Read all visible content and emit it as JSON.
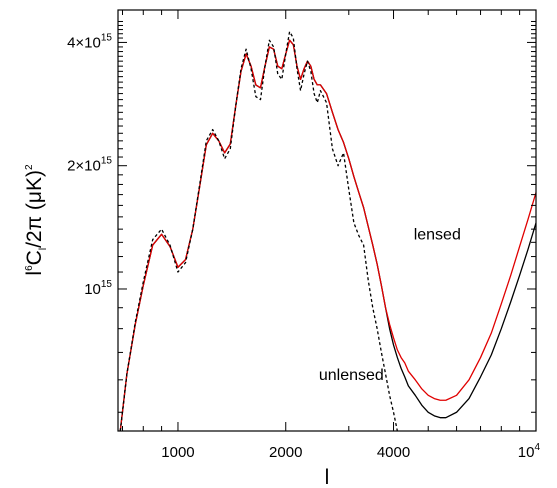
{
  "chart_data": {
    "type": "line",
    "xscale": "log",
    "yscale": "log",
    "xlabel": "l",
    "ylabel": {
      "base": "l",
      "exp": "6",
      "mid": "C",
      "sub": "l",
      "tail": "/2π (μK)",
      "exp2": "2"
    },
    "xlim": [
      680,
      10000
    ],
    "ylim": [
      450000000000000,
      4800000000000000
    ],
    "x_ticks": [
      {
        "value": 1000,
        "label": "1000"
      },
      {
        "value": 2000,
        "label": "2000"
      },
      {
        "value": 4000,
        "label": "4000"
      },
      {
        "value": 10000,
        "label": "10",
        "exp": "4"
      }
    ],
    "y_ticks": [
      {
        "value": 1000000000000000,
        "mant": "10",
        "exp": "15"
      },
      {
        "value": 2000000000000000,
        "mant": "2×10",
        "exp": "15"
      },
      {
        "value": 4000000000000000,
        "mant": "4×10",
        "exp": "15"
      }
    ],
    "grid": false,
    "annotations": [
      {
        "text": "lensed",
        "x": 5300,
        "y": 1320000000000000
      },
      {
        "text": "unlensed",
        "x": 3050,
        "y": 600000000000000
      }
    ],
    "series": [
      {
        "style": "solid",
        "color": "#000000",
        "x": [
          690,
          720,
          760,
          800,
          850,
          900,
          950,
          1000,
          1050,
          1100,
          1150,
          1200,
          1250,
          1300,
          1350,
          1400,
          1450,
          1500,
          1550,
          1600,
          1650,
          1700,
          1750,
          1800,
          1850,
          1900,
          1950,
          2000,
          2050,
          2100,
          2150,
          2200,
          2250,
          2300,
          2350,
          2400,
          2450,
          2500,
          2600,
          2700,
          2800,
          2900,
          3000,
          3100,
          3200,
          3300,
          3400,
          3500,
          3600,
          3700,
          3800,
          3900,
          4000,
          4100,
          4200,
          4300,
          4400,
          4600,
          4800,
          5000,
          5200,
          5400,
          5600,
          6000,
          6500,
          7000,
          7500,
          8000,
          8500,
          9000,
          9500,
          10000
        ],
        "y": [
          450000000000000.0,
          620000000000000.0,
          820000000000000.0,
          1020000000000000.0,
          1280000000000000.0,
          1360000000000000.0,
          1270000000000000.0,
          1130000000000000.0,
          1180000000000000.0,
          1400000000000000.0,
          1780000000000000.0,
          2250000000000000.0,
          2400000000000000.0,
          2300000000000000.0,
          2150000000000000.0,
          2260000000000000.0,
          2800000000000000.0,
          3400000000000000.0,
          3750000000000000.0,
          3500000000000000.0,
          3150000000000000.0,
          3100000000000000.0,
          3500000000000000.0,
          3900000000000000.0,
          3850000000000000.0,
          3500000000000000.0,
          3450000000000000.0,
          3750000000000000.0,
          4050000000000000.0,
          3950000000000000.0,
          3500000000000000.0,
          3250000000000000.0,
          3450000000000000.0,
          3600000000000000.0,
          3500000000000000.0,
          3250000000000000.0,
          3150000000000000.0,
          3150000000000000.0,
          3000000000000000.0,
          2700000000000000.0,
          2450000000000000.0,
          2280000000000000.0,
          2080000000000000.0,
          1880000000000000.0,
          1720000000000000.0,
          1580000000000000.0,
          1420000000000000.0,
          1280000000000000.0,
          1150000000000000.0,
          1020000000000000.0,
          900000000000000.0,
          800000000000000.0,
          730000000000000.0,
          680000000000000.0,
          640000000000000.0,
          610000000000000.0,
          580000000000000.0,
          550000000000000.0,
          520000000000000.0,
          500000000000000.0,
          490000000000000.0,
          485000000000000.0,
          485000000000000.0,
          500000000000000.0,
          540000000000000.0,
          610000000000000.0,
          690000000000000.0,
          800000000000000.0,
          930000000000000.0,
          1080000000000000.0,
          1250000000000000.0,
          1450000000000000.0
        ]
      },
      {
        "name": "lensed",
        "style": "solid",
        "color": "#e00000",
        "x": [
          690,
          720,
          760,
          800,
          850,
          900,
          950,
          1000,
          1050,
          1100,
          1150,
          1200,
          1250,
          1300,
          1350,
          1400,
          1450,
          1500,
          1550,
          1600,
          1650,
          1700,
          1750,
          1800,
          1850,
          1900,
          1950,
          2000,
          2050,
          2100,
          2150,
          2200,
          2250,
          2300,
          2350,
          2400,
          2450,
          2500,
          2600,
          2700,
          2800,
          2900,
          3000,
          3100,
          3200,
          3300,
          3400,
          3500,
          3600,
          3700,
          3800,
          3900,
          4000,
          4100,
          4200,
          4300,
          4400,
          4600,
          4800,
          5000,
          5200,
          5400,
          5600,
          6000,
          6500,
          7000,
          7500,
          8000,
          8500,
          9000,
          9500,
          10000
        ],
        "y": [
          450000000000000.0,
          620000000000000.0,
          820000000000000.0,
          1020000000000000.0,
          1280000000000000.0,
          1360000000000000.0,
          1270000000000000.0,
          1130000000000000.0,
          1180000000000000.0,
          1400000000000000.0,
          1780000000000000.0,
          2250000000000000.0,
          2400000000000000.0,
          2300000000000000.0,
          2150000000000000.0,
          2260000000000000.0,
          2800000000000000.0,
          3400000000000000.0,
          3750000000000000.0,
          3500000000000000.0,
          3150000000000000.0,
          3100000000000000.0,
          3500000000000000.0,
          3900000000000000.0,
          3850000000000000.0,
          3500000000000000.0,
          3450000000000000.0,
          3750000000000000.0,
          4050000000000000.0,
          3950000000000000.0,
          3500000000000000.0,
          3250000000000000.0,
          3450000000000000.0,
          3600000000000000.0,
          3500000000000000.0,
          3250000000000000.0,
          3150000000000000.0,
          3150000000000000.0,
          3000000000000000.0,
          2700000000000000.0,
          2450000000000000.0,
          2280000000000000.0,
          2080000000000000.0,
          1880000000000000.0,
          1720000000000000.0,
          1580000000000000.0,
          1420000000000000.0,
          1280000000000000.0,
          1150000000000000.0,
          1020000000000000.0,
          900000000000000.0,
          820000000000000.0,
          760000000000000.0,
          710000000000000.0,
          680000000000000.0,
          660000000000000.0,
          630000000000000.0,
          600000000000000.0,
          570000000000000.0,
          550000000000000.0,
          540000000000000.0,
          535000000000000.0,
          535000000000000.0,
          550000000000000.0,
          600000000000000.0,
          680000000000000.0,
          780000000000000.0,
          920000000000000.0,
          1080000000000000.0,
          1270000000000000.0,
          1480000000000000.0,
          1720000000000000.0
        ]
      },
      {
        "name": "unlensed",
        "style": "dashed",
        "color": "#000000",
        "x": [
          690,
          720,
          760,
          800,
          850,
          900,
          950,
          1000,
          1050,
          1100,
          1150,
          1200,
          1250,
          1300,
          1350,
          1400,
          1450,
          1500,
          1550,
          1600,
          1650,
          1700,
          1750,
          1800,
          1850,
          1900,
          1950,
          2000,
          2050,
          2100,
          2150,
          2200,
          2250,
          2300,
          2350,
          2400,
          2450,
          2500,
          2600,
          2700,
          2800,
          2900,
          3000,
          3100,
          3200,
          3300,
          3400,
          3500,
          3600,
          3700,
          3800,
          3900,
          4000,
          4100
        ],
        "y": [
          450000000000000.0,
          620000000000000.0,
          830000000000000.0,
          1040000000000000.0,
          1320000000000000.0,
          1400000000000000.0,
          1280000000000000.0,
          1100000000000000.0,
          1160000000000000.0,
          1400000000000000.0,
          1800000000000000.0,
          2300000000000000.0,
          2450000000000000.0,
          2300000000000000.0,
          2080000000000000.0,
          2200000000000000.0,
          2800000000000000.0,
          3450000000000000.0,
          3850000000000000.0,
          3450000000000000.0,
          2950000000000000.0,
          2900000000000000.0,
          3500000000000000.0,
          4050000000000000.0,
          3900000000000000.0,
          3350000000000000.0,
          3250000000000000.0,
          3750000000000000.0,
          4250000000000000.0,
          4100000000000000.0,
          3450000000000000.0,
          3050000000000000.0,
          3350000000000000.0,
          3600000000000000.0,
          3400000000000000.0,
          3000000000000000.0,
          2850000000000000.0,
          3050000000000000.0,
          2850000000000000.0,
          2200000000000000.0,
          2000000000000000.0,
          2150000000000000.0,
          1750000000000000.0,
          1450000000000000.0,
          1350000000000000.0,
          1280000000000000.0,
          1050000000000000.0,
          900000000000000.0,
          800000000000000.0,
          700000000000000.0,
          620000000000000.0,
          550000000000000.0,
          500000000000000.0,
          450000000000000.0
        ]
      }
    ]
  }
}
